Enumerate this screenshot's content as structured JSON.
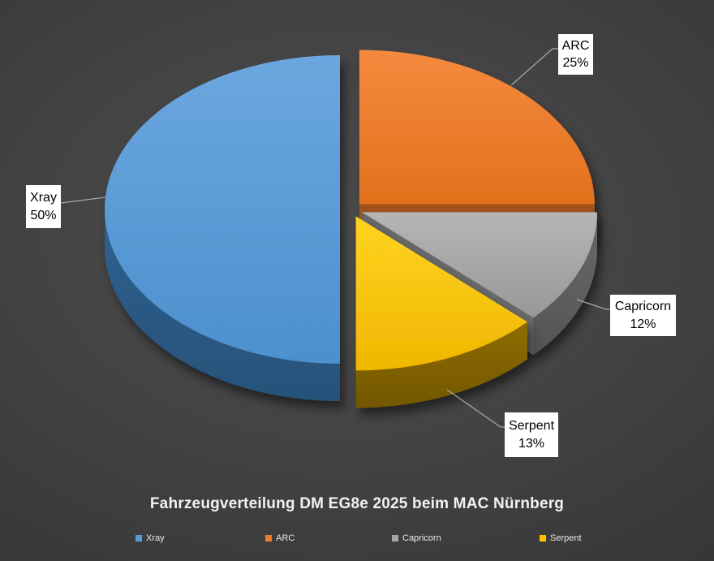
{
  "chart_data": {
    "type": "pie",
    "style": "3d-exploded",
    "title": "Fahrzeugverteilung DM EG8e 2025 beim MAC Nürnberg",
    "labels": [
      "Xray",
      "ARC",
      "Capricorn",
      "Serpent"
    ],
    "values": [
      50,
      25,
      12,
      13
    ],
    "colors": [
      "#5B9BD5",
      "#ED7D31",
      "#A5A5A5",
      "#FFC000"
    ],
    "rotation_deg": 180,
    "legend_position": "bottom",
    "data_labels": [
      {
        "name": "Xray",
        "pct": "50%"
      },
      {
        "name": "ARC",
        "pct": "25%"
      },
      {
        "name": "Capricorn",
        "pct": "12%"
      },
      {
        "name": "Serpent",
        "pct": "13%"
      }
    ],
    "legend": [
      "Xray",
      "ARC",
      "Capricorn",
      "Serpent"
    ]
  },
  "colors": {
    "label_box_bg": "#FFFFFF",
    "label_text": "#000000",
    "title_text": "#F2F2F2",
    "legend_text": "#E9E9E9",
    "leader_line": "#A6A6A6"
  }
}
